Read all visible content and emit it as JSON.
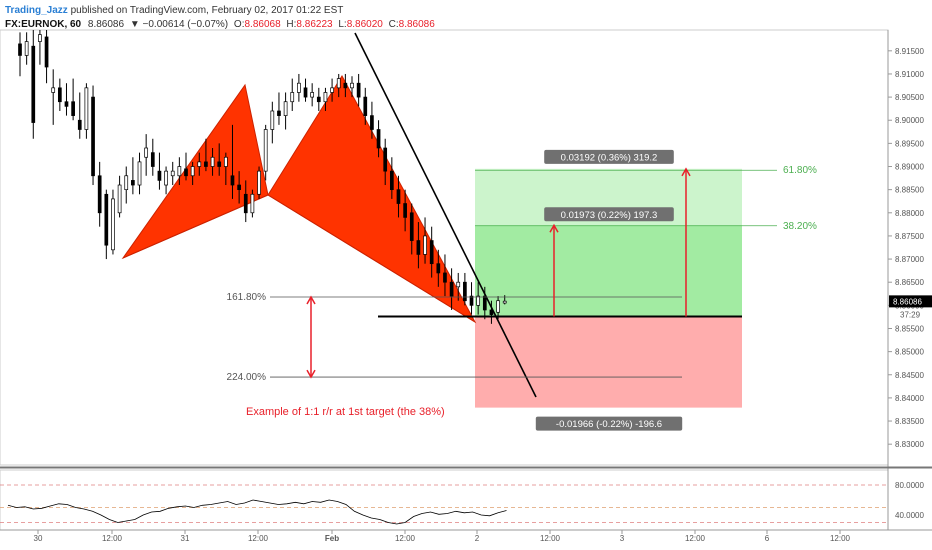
{
  "header": {
    "author": "Trading_Jazz",
    "published": " published on TradingView.com, February 02, 2017 01:22 EST",
    "symbol": "FX:EURNOK, 60",
    "last": "8.86086",
    "change": "▼ −0.00614 (−0.07%)",
    "ohlc": {
      "o_label": "O:",
      "o": "8.86068",
      "h_label": "H:",
      "h": "8.86223",
      "l_label": "L:",
      "l": "8.86020",
      "c_label": "C:",
      "c": "8.86086"
    }
  },
  "colors": {
    "pattern_red": "#ff3300",
    "target_green": "#6ee06e",
    "stop_red": "#ff9999",
    "arrow_red": "#e8202a",
    "fib_green": "#4caf50",
    "price_tag": "#000000",
    "badge": "#707070"
  },
  "chart_data": [
    {
      "type": "candlestick",
      "title": "",
      "y_axis": {
        "side": "right",
        "range": [
          8.8255,
          8.9195
        ],
        "ticks": [
          "8.91500",
          "8.91000",
          "8.90500",
          "8.90000",
          "8.89500",
          "8.89000",
          "8.88500",
          "8.88000",
          "8.87500",
          "8.87000",
          "8.86500",
          "8.86000",
          "8.85500",
          "8.85000",
          "8.84500",
          "8.84000",
          "8.83500",
          "8.83000"
        ]
      },
      "x_axis": {
        "ticks": [
          "30",
          "12:00",
          "31",
          "12:00",
          "Feb",
          "12:00",
          "2",
          "12:00",
          "3",
          "12:00",
          "6",
          "12:00"
        ]
      },
      "price_tag": {
        "value": 8.86086,
        "label": "8.86086",
        "countdown": "37:29"
      },
      "fib_levels": [
        {
          "label": "161.80%",
          "price": 8.8618
        },
        {
          "label": "224.00%",
          "price": 8.8445
        },
        {
          "label": "61.80%",
          "price": 8.8892
        },
        {
          "label": "38.20%",
          "price": 8.8772
        }
      ],
      "entry_price": 8.8576,
      "target_box": [
        {
          "label": "0.03192 (0.36%) 319.2",
          "from": 8.8576,
          "to": 8.8895
        },
        {
          "label": "0.01973 (0.22%) 197.3",
          "from": 8.8576,
          "to": 8.8773
        }
      ],
      "stop_box": {
        "label": "-0.01966 (-0.22%) -196.6",
        "from": 8.8576,
        "to": 8.8379
      },
      "annotation": "Example of 1:1 r/r at 1st target (the 38%)",
      "candles": [
        [
          8.9165,
          8.919,
          8.9095,
          8.914
        ],
        [
          8.914,
          8.919,
          8.912,
          8.917
        ],
        [
          8.916,
          8.9195,
          8.896,
          8.8995
        ],
        [
          8.917,
          8.9195,
          8.912,
          8.9185
        ],
        [
          8.918,
          8.9195,
          8.908,
          8.9115
        ],
        [
          8.906,
          8.911,
          8.899,
          8.907
        ],
        [
          8.907,
          8.909,
          8.902,
          8.904
        ],
        [
          8.904,
          8.908,
          8.901,
          8.903
        ],
        [
          8.904,
          8.909,
          8.9,
          8.901
        ],
        [
          8.9,
          8.906,
          8.896,
          8.898
        ],
        [
          8.898,
          8.908,
          8.896,
          8.907
        ],
        [
          8.905,
          8.9075,
          8.886,
          8.888
        ],
        [
          8.888,
          8.891,
          8.877,
          8.88
        ],
        [
          8.884,
          8.885,
          8.87,
          8.873
        ],
        [
          8.872,
          8.885,
          8.871,
          8.883
        ],
        [
          8.88,
          8.888,
          8.879,
          8.886
        ],
        [
          8.885,
          8.89,
          8.882,
          8.888
        ],
        [
          8.887,
          8.892,
          8.884,
          8.886
        ],
        [
          8.886,
          8.893,
          8.884,
          8.891
        ],
        [
          8.892,
          8.897,
          8.888,
          8.894
        ],
        [
          8.893,
          8.896,
          8.888,
          8.89
        ],
        [
          8.889,
          8.893,
          8.885,
          8.887
        ],
        [
          8.886,
          8.89,
          8.884,
          8.889
        ],
        [
          8.888,
          8.891,
          8.886,
          8.889
        ],
        [
          8.888,
          8.892,
          8.886,
          8.89
        ],
        [
          8.8895,
          8.893,
          8.887,
          8.888
        ],
        [
          8.888,
          8.891,
          8.886,
          8.89
        ],
        [
          8.89,
          8.893,
          8.888,
          8.891
        ],
        [
          8.891,
          8.896,
          8.889,
          8.89
        ],
        [
          8.89,
          8.894,
          8.888,
          8.892
        ],
        [
          8.891,
          8.895,
          8.888,
          8.89
        ],
        [
          8.89,
          8.893,
          8.886,
          8.892
        ],
        [
          8.888,
          8.899,
          8.883,
          8.886
        ],
        [
          8.886,
          8.889,
          8.882,
          8.885
        ],
        [
          8.884,
          8.887,
          8.878,
          8.88
        ],
        [
          8.88,
          8.885,
          8.879,
          8.884
        ],
        [
          8.884,
          8.89,
          8.883,
          8.889
        ],
        [
          8.889,
          8.899,
          8.887,
          8.898
        ],
        [
          8.898,
          8.904,
          8.895,
          8.902
        ],
        [
          8.902,
          8.906,
          8.899,
          8.901
        ],
        [
          8.901,
          8.906,
          8.898,
          8.904
        ],
        [
          8.904,
          8.909,
          8.902,
          8.906
        ],
        [
          8.906,
          8.91,
          8.904,
          8.908
        ],
        [
          8.907,
          8.909,
          8.904,
          8.905
        ],
        [
          8.905,
          8.908,
          8.903,
          8.906
        ],
        [
          8.905,
          8.907,
          8.902,
          8.904
        ],
        [
          8.904,
          8.907,
          8.902,
          8.906
        ],
        [
          8.906,
          8.909,
          8.904,
          8.907
        ],
        [
          8.907,
          8.91,
          8.905,
          8.909
        ],
        [
          8.908,
          8.91,
          8.905,
          8.907
        ],
        [
          8.907,
          8.9095,
          8.905,
          8.908
        ],
        [
          8.908,
          8.91,
          8.903,
          8.905
        ],
        [
          8.905,
          8.907,
          8.899,
          8.901
        ],
        [
          8.901,
          8.904,
          8.896,
          8.898
        ],
        [
          8.898,
          8.9,
          8.892,
          8.894
        ],
        [
          8.894,
          8.896,
          8.886,
          8.889
        ],
        [
          8.889,
          8.892,
          8.883,
          8.885
        ],
        [
          8.885,
          8.888,
          8.879,
          8.882
        ],
        [
          8.882,
          8.885,
          8.876,
          8.879
        ],
        [
          8.88,
          8.882,
          8.871,
          8.874
        ],
        [
          8.874,
          8.878,
          8.868,
          8.871
        ],
        [
          8.871,
          8.879,
          8.869,
          8.875
        ],
        [
          8.874,
          8.877,
          8.866,
          8.869
        ],
        [
          8.869,
          8.872,
          8.864,
          8.867
        ],
        [
          8.867,
          8.871,
          8.862,
          8.865
        ],
        [
          8.865,
          8.868,
          8.859,
          8.862
        ],
        [
          8.864,
          8.867,
          8.861,
          8.865
        ],
        [
          8.865,
          8.867,
          8.86,
          8.861
        ],
        [
          8.862,
          8.865,
          8.858,
          8.86
        ],
        [
          8.86,
          8.865,
          8.858,
          8.862
        ],
        [
          8.862,
          8.864,
          8.857,
          8.859
        ],
        [
          8.859,
          8.861,
          8.856,
          8.858
        ],
        [
          8.8585,
          8.862,
          8.857,
          8.861
        ],
        [
          8.8605,
          8.8622,
          8.8602,
          8.8609
        ]
      ]
    },
    {
      "type": "line",
      "title": "",
      "y_axis": {
        "range": [
          20,
          100
        ],
        "ticks": [
          "80.0000",
          "40.0000"
        ]
      },
      "guides": [
        80,
        50,
        30
      ],
      "values": [
        53,
        50,
        51,
        48,
        49,
        52,
        55,
        54,
        50,
        48,
        45,
        40,
        34,
        30,
        32,
        34,
        40,
        44,
        45,
        49,
        51,
        52,
        50,
        53,
        54,
        56,
        58,
        54,
        56,
        60,
        58,
        56,
        54,
        55,
        57,
        55,
        58,
        57,
        60,
        58,
        54,
        45,
        40,
        36,
        34,
        30,
        28,
        30,
        38,
        42,
        44,
        41,
        42,
        45,
        43,
        44,
        40,
        39,
        43,
        46
      ]
    }
  ]
}
